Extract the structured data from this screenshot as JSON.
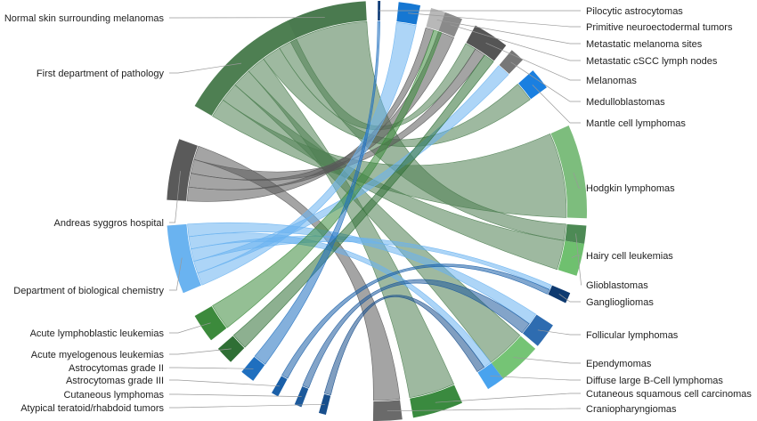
{
  "diagram": {
    "type": "chord",
    "sources": [
      {
        "key": "normal_skin",
        "label": "Normal skin surrounding melanomas",
        "color": "#4a7a4f"
      },
      {
        "key": "first_dept",
        "label": "First department of pathology",
        "color": "#4e7f52"
      },
      {
        "key": "andreas",
        "label": "Andreas syggros hospital",
        "color": "#5a5a5a"
      },
      {
        "key": "dept_bio",
        "label": "Department of biological chemistry",
        "color": "#6ab3f0"
      },
      {
        "key": "all",
        "label": "Acute lymphoblastic leukemias",
        "color": "#3c8a3c"
      },
      {
        "key": "aml",
        "label": "Acute myelogenous leukemias",
        "color": "#2f6f35"
      },
      {
        "key": "astro2",
        "label": "Astrocytomas grade II",
        "color": "#1f6fbf"
      },
      {
        "key": "astro3",
        "label": "Astrocytomas grade III",
        "color": "#1a5fa8"
      },
      {
        "key": "cut_lymph",
        "label": "Cutaneous lymphomas",
        "color": "#1d5a9c"
      },
      {
        "key": "atrt",
        "label": "Atypical teratoid/rhabdoid tumors",
        "color": "#184f8c"
      }
    ],
    "targets": [
      {
        "key": "pilocytic",
        "label": "Pilocytic astrocytomas",
        "color": "#123e78"
      },
      {
        "key": "pnet",
        "label": "Primitive neuroectodermal tumors",
        "color": "#1677d2"
      },
      {
        "key": "meta_mel",
        "label": "Metastatic melanoma sites",
        "color": "#b8b8b8"
      },
      {
        "key": "meta_cscc",
        "label": "Metastatic cSCC lymph nodes",
        "color": "#8a8a8a"
      },
      {
        "key": "melanomas",
        "label": "Melanomas",
        "color": "#555555"
      },
      {
        "key": "medullo",
        "label": "Medulloblastomas",
        "color": "#777777"
      },
      {
        "key": "mantle",
        "label": "Mantle cell lymphomas",
        "color": "#1a7fe0"
      },
      {
        "key": "hodgkin",
        "label": "Hodgkin lymphomas",
        "color": "#7dbd7d"
      },
      {
        "key": "hairy",
        "label": "Hairy cell leukemias",
        "color": "#6fc06f"
      },
      {
        "key": "glio",
        "label": "Glioblastomas",
        "color": "#4d8a55"
      },
      {
        "key": "ganglio",
        "label": "Gangliogliomas",
        "color": "#0e3a70"
      },
      {
        "key": "follicular",
        "label": "Follicular lymphomas",
        "color": "#2e6cb0"
      },
      {
        "key": "ependymomas",
        "label": "Ependymomas",
        "color": "#75c475"
      },
      {
        "key": "dlbcl",
        "label": "Diffuse large B-Cell lymphomas",
        "color": "#49a3ee"
      },
      {
        "key": "cscc",
        "label": "Cutaneous squamous cell carcinomas",
        "color": "#3a8a3f"
      },
      {
        "key": "cranio",
        "label": "Craniopharyngiomas",
        "color": "#6a6a6a"
      }
    ],
    "flows": [
      {
        "from": "normal_skin",
        "to": "glio"
      },
      {
        "from": "first_dept",
        "to": "hodgkin"
      },
      {
        "from": "first_dept",
        "to": "hairy"
      },
      {
        "from": "first_dept",
        "to": "ependymomas"
      },
      {
        "from": "first_dept",
        "to": "cscc"
      },
      {
        "from": "first_dept",
        "to": "mantle"
      },
      {
        "from": "first_dept",
        "to": "melanomas"
      },
      {
        "from": "andreas",
        "to": "meta_mel"
      },
      {
        "from": "andreas",
        "to": "meta_cscc"
      },
      {
        "from": "andreas",
        "to": "melanomas"
      },
      {
        "from": "andreas",
        "to": "cranio"
      },
      {
        "from": "dept_bio",
        "to": "pnet"
      },
      {
        "from": "dept_bio",
        "to": "medullo"
      },
      {
        "from": "dept_bio",
        "to": "ganglio"
      },
      {
        "from": "dept_bio",
        "to": "dlbcl"
      },
      {
        "from": "dept_bio",
        "to": "follicular"
      },
      {
        "from": "all",
        "to": "meta_mel"
      },
      {
        "from": "aml",
        "to": "melanomas"
      },
      {
        "from": "astro2",
        "to": "pilocytic"
      },
      {
        "from": "astro3",
        "to": "ganglio"
      },
      {
        "from": "cut_lymph",
        "to": "follicular"
      },
      {
        "from": "atrt",
        "to": "dlbcl"
      }
    ]
  }
}
